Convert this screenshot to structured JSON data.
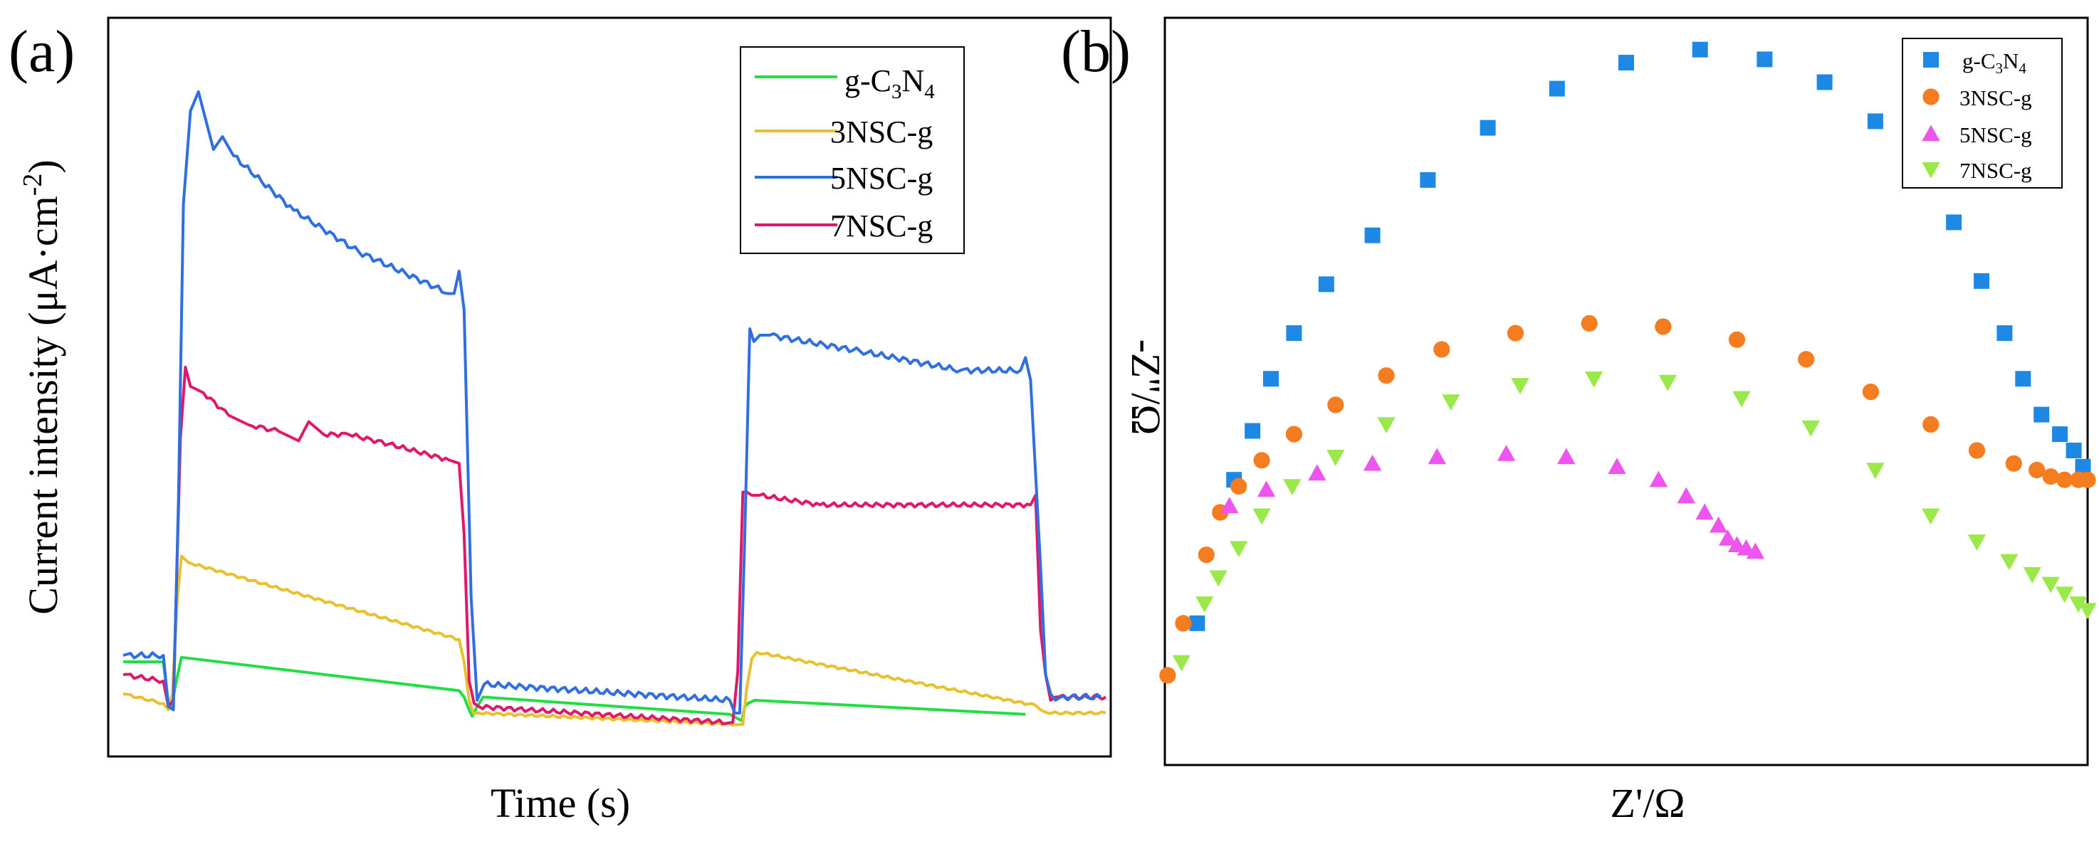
{
  "colors": {
    "gC3N4_line": "#22dd44",
    "NSC3_line": "#e8c030",
    "NSC5_line": "#2f6fe0",
    "NSC7_line": "#e0186a",
    "gC3N4_marker": "#1e88e5",
    "NSC3_marker": "#f57c1f",
    "NSC5_marker": "#ee55ee",
    "NSC7_marker": "#9be84a"
  },
  "chart_data": [
    {
      "panel": "(a)",
      "type": "line",
      "xlabel": "Time (s)",
      "ylabel": "Current intensity (μA·cm",
      "ylabel_sup": "-2",
      "ylabel_end": ")",
      "xlim": [
        0,
        100
      ],
      "ylim": [
        0,
        100
      ],
      "grid": false,
      "legend_position": "top-right",
      "legend": [
        {
          "key": "gC3N4",
          "label": "g-C",
          "sub1": "3",
          "mid": "N",
          "sub2": "4"
        },
        {
          "key": "NSC3",
          "label": "3NSC-g"
        },
        {
          "key": "NSC5",
          "label": "5NSC-g"
        },
        {
          "key": "NSC7",
          "label": "7NSC-g"
        }
      ],
      "series": [
        {
          "key": "gC3N4",
          "name": "g-C3N4",
          "x": [
            1.5,
            5.5,
            6.0,
            6.3,
            6.8,
            7.3,
            35.0,
            35.5,
            36.0,
            36.3,
            36.8,
            37.4,
            62.0,
            63.2,
            63.5,
            63.8,
            64.5,
            91.5
          ],
          "y": [
            10.0,
            10.0,
            3.6,
            3.0,
            7.0,
            10.7,
            5.5,
            4.5,
            2.5,
            1.5,
            3.0,
            4.5,
            1.8,
            0.8,
            3.0,
            3.5,
            4.0,
            1.8
          ]
        },
        {
          "key": "NSC3",
          "name": "3NSC-g",
          "x": [
            1.5,
            5.5,
            6.0,
            6.4,
            6.9,
            7.3,
            8.0,
            35.0,
            35.5,
            36.0,
            36.4,
            37.0,
            63.0,
            63.3,
            63.7,
            64.2,
            64.7,
            92.5,
            93.0,
            93.7,
            99.5
          ],
          "y": [
            5.0,
            3.5,
            2.5,
            5.0,
            20.0,
            26.5,
            25.5,
            13.5,
            10.0,
            4.0,
            2.0,
            2.0,
            0.2,
            0.2,
            6.0,
            10.5,
            11.5,
            3.2,
            2.5,
            2.0,
            2.0
          ],
          "noise": 0.2
        },
        {
          "key": "NSC5",
          "name": "5NSC-g",
          "x": [
            1.5,
            5.5,
            6.0,
            6.5,
            7.0,
            7.5,
            8.2,
            9.0,
            10.5,
            11.4,
            12.5,
            18.5,
            25.0,
            34.0,
            34.5,
            35.0,
            35.5,
            36.2,
            36.8,
            37.5,
            62.0,
            62.5,
            63.0,
            63.5,
            64.0,
            64.4,
            65.0,
            66.0,
            75.0,
            85.0,
            91.0,
            91.5,
            92.0,
            93.0,
            93.5,
            94.0,
            94.5,
            95.0,
            99.0
          ],
          "y": [
            11.0,
            11.0,
            3.0,
            2.5,
            35.0,
            81.5,
            96.0,
            99.0,
            90.0,
            92.0,
            89.0,
            80.5,
            74.0,
            67.5,
            67.5,
            71.0,
            65.0,
            20.0,
            4.0,
            6.5,
            4.0,
            2.0,
            2.0,
            30.0,
            62.0,
            60.0,
            61.0,
            61.0,
            58.5,
            55.5,
            55.5,
            57.5,
            54.0,
            25.0,
            8.0,
            5.0,
            4.0,
            4.5,
            4.5
          ],
          "noise": 0.45
        },
        {
          "key": "NSC7",
          "name": "7NSC-g",
          "x": [
            1.5,
            5.5,
            6.0,
            6.5,
            7.2,
            7.7,
            8.2,
            9.5,
            12.0,
            14.0,
            17.0,
            19.0,
            20.0,
            21.5,
            24.0,
            28.0,
            34.0,
            35.0,
            35.5,
            36.0,
            36.5,
            37.0,
            62.0,
            62.3,
            62.8,
            63.3,
            63.7,
            64.2,
            65.0,
            71.0,
            92.0,
            92.5,
            93.0,
            93.5,
            94.0,
            94.5,
            99.5
          ],
          "y": [
            8.0,
            7.0,
            3.0,
            4.0,
            45.0,
            56.0,
            53.0,
            52.0,
            48.5,
            47.0,
            46.0,
            44.5,
            47.5,
            45.5,
            45.5,
            44.0,
            41.5,
            41.0,
            30.0,
            7.0,
            3.5,
            3.0,
            0.5,
            0.5,
            8.5,
            36.5,
            36.5,
            36.0,
            36.0,
            34.5,
            34.5,
            36.0,
            15.0,
            8.0,
            4.0,
            4.5,
            4.5
          ],
          "noise": 0.35
        }
      ]
    },
    {
      "panel": "(b)",
      "type": "scatter",
      "xlabel": "Z'/Ω",
      "ylabel": "-Z''/Ω",
      "xlim": [
        0,
        100
      ],
      "ylim": [
        0,
        100
      ],
      "grid": false,
      "legend_position": "top-right",
      "legend": [
        {
          "key": "gC3N4",
          "marker": "square",
          "label": "g-C",
          "sub1": "3",
          "mid": "N",
          "sub2": "4"
        },
        {
          "key": "NSC3",
          "marker": "circle",
          "label": "3NSC-g"
        },
        {
          "key": "NSC5",
          "marker": "triangle-up",
          "label": "5NSC-g"
        },
        {
          "key": "NSC7",
          "marker": "triangle-down",
          "label": "7NSC-g"
        }
      ],
      "series": [
        {
          "key": "gC3N4",
          "name": "g-C3N4",
          "marker": "square",
          "x": [
            3.5,
            7.5,
            9.5,
            11.5,
            14.0,
            17.5,
            22.5,
            28.5,
            35.0,
            42.5,
            50.0,
            58.0,
            65.0,
            71.5,
            77.0,
            82.0,
            85.5,
            88.5,
            91.0,
            93.0,
            95.0,
            97.0,
            98.5,
            99.5
          ],
          "y": [
            14.0,
            36.0,
            43.5,
            51.5,
            58.5,
            66.0,
            73.5,
            82.0,
            90.0,
            96.0,
            100.0,
            102.0,
            100.5,
            97.0,
            91.0,
            83.0,
            75.5,
            66.5,
            58.5,
            51.5,
            46.0,
            43.0,
            40.5,
            38.0
          ]
        },
        {
          "key": "NSC3",
          "name": "3NSC-g",
          "marker": "circle",
          "x": [
            0.3,
            2.0,
            4.5,
            6.0,
            8.0,
            10.5,
            14.0,
            18.5,
            24.0,
            30.0,
            38.0,
            46.0,
            54.0,
            62.0,
            69.5,
            76.5,
            83.0,
            88.0,
            92.0,
            94.5,
            96.0,
            97.5,
            99.0,
            100.0
          ],
          "y": [
            6.0,
            14.0,
            24.5,
            31.0,
            35.0,
            39.0,
            43.0,
            47.5,
            52.0,
            56.0,
            58.5,
            60.0,
            59.5,
            57.5,
            54.5,
            49.5,
            44.5,
            40.5,
            38.5,
            37.5,
            36.5,
            36.0,
            36.0,
            36.0
          ]
        },
        {
          "key": "NSC5",
          "name": "5NSC-g",
          "marker": "triangle-up",
          "x": [
            7.0,
            11.0,
            16.5,
            22.5,
            29.5,
            37.0,
            43.5,
            49.0,
            53.5,
            56.5,
            58.5,
            60.0,
            61.0,
            62.0,
            63.0,
            64.0
          ],
          "y": [
            32.0,
            34.5,
            37.0,
            38.5,
            39.5,
            40.0,
            39.5,
            38.0,
            36.0,
            33.5,
            31.0,
            29.0,
            27.0,
            26.0,
            25.5,
            25.0
          ]
        },
        {
          "key": "NSC7",
          "name": "7NSC-g",
          "marker": "triangle-down",
          "x": [
            1.8,
            4.3,
            5.8,
            8.0,
            10.5,
            13.8,
            18.5,
            24.0,
            31.0,
            38.5,
            46.5,
            54.5,
            62.5,
            70.0,
            77.0,
            83.0,
            88.0,
            91.5,
            94.0,
            96.0,
            97.5,
            99.0,
            100.0
          ],
          "y": [
            8.0,
            17.0,
            21.0,
            25.5,
            30.5,
            35.0,
            39.5,
            44.5,
            48.0,
            50.5,
            51.5,
            51.0,
            48.5,
            44.0,
            37.5,
            30.5,
            26.5,
            23.5,
            21.5,
            20.0,
            18.5,
            17.0,
            16.0
          ]
        }
      ]
    }
  ]
}
